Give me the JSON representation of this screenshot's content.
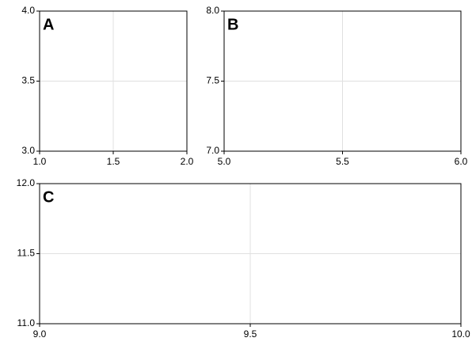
{
  "chart_data": [
    {
      "type": "scatter",
      "title": "A",
      "xlim": [
        1,
        2
      ],
      "ylim": [
        3,
        4
      ],
      "xticks": [
        {
          "value": 1,
          "label": "1.0"
        },
        1.5,
        {
          "value": 2,
          "label": "2.0"
        }
      ],
      "yticks": [
        {
          "value": 3,
          "label": "3.0"
        },
        3.5,
        {
          "value": 4,
          "label": "4.0"
        }
      ],
      "grid": true
    },
    {
      "type": "scatter",
      "title": "B",
      "xlim": [
        5,
        6
      ],
      "ylim": [
        7,
        8
      ],
      "xticks": [
        {
          "value": 5,
          "label": "5.0"
        },
        5.5,
        {
          "value": 6,
          "label": "6.0"
        }
      ],
      "yticks": [
        {
          "value": 7,
          "label": "7.0"
        },
        7.5,
        {
          "value": 8,
          "label": "8.0"
        }
      ],
      "grid": true
    },
    {
      "type": "scatter",
      "title": "C",
      "xlim": [
        9,
        10
      ],
      "ylim": [
        11,
        12
      ],
      "xticks": [
        {
          "value": 9,
          "label": "9.0"
        },
        9.5,
        {
          "value": 10,
          "label": "10.0"
        }
      ],
      "yticks": [
        {
          "value": 11,
          "label": "11.0"
        },
        11.5,
        {
          "value": 12,
          "label": "12.0"
        }
      ],
      "grid": true
    }
  ]
}
